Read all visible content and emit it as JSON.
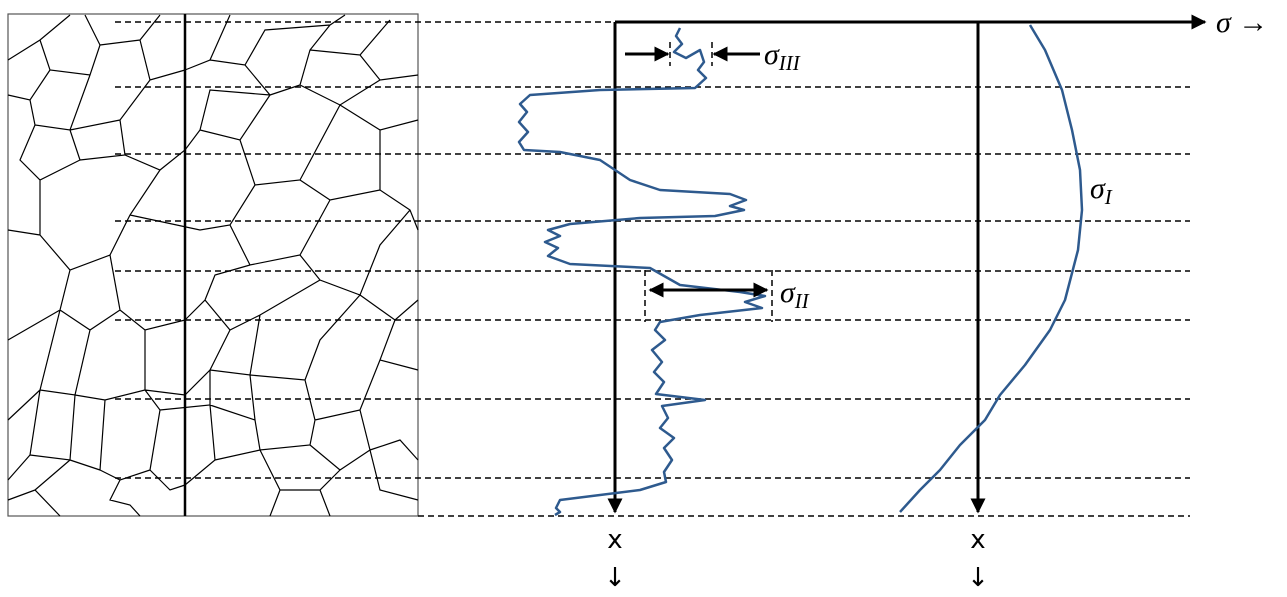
{
  "axis": {
    "label": "σ →"
  },
  "labels": {
    "sigma_III": {
      "symbol": "σ",
      "subscript": "III"
    },
    "sigma_II": {
      "symbol": "σ",
      "subscript": "II"
    },
    "sigma_I": {
      "symbol": "σ",
      "subscript": "I"
    }
  },
  "depth_axes": [
    {
      "label": "x",
      "arrow": "↓"
    },
    {
      "label": "x",
      "arrow": "↓"
    }
  ]
}
